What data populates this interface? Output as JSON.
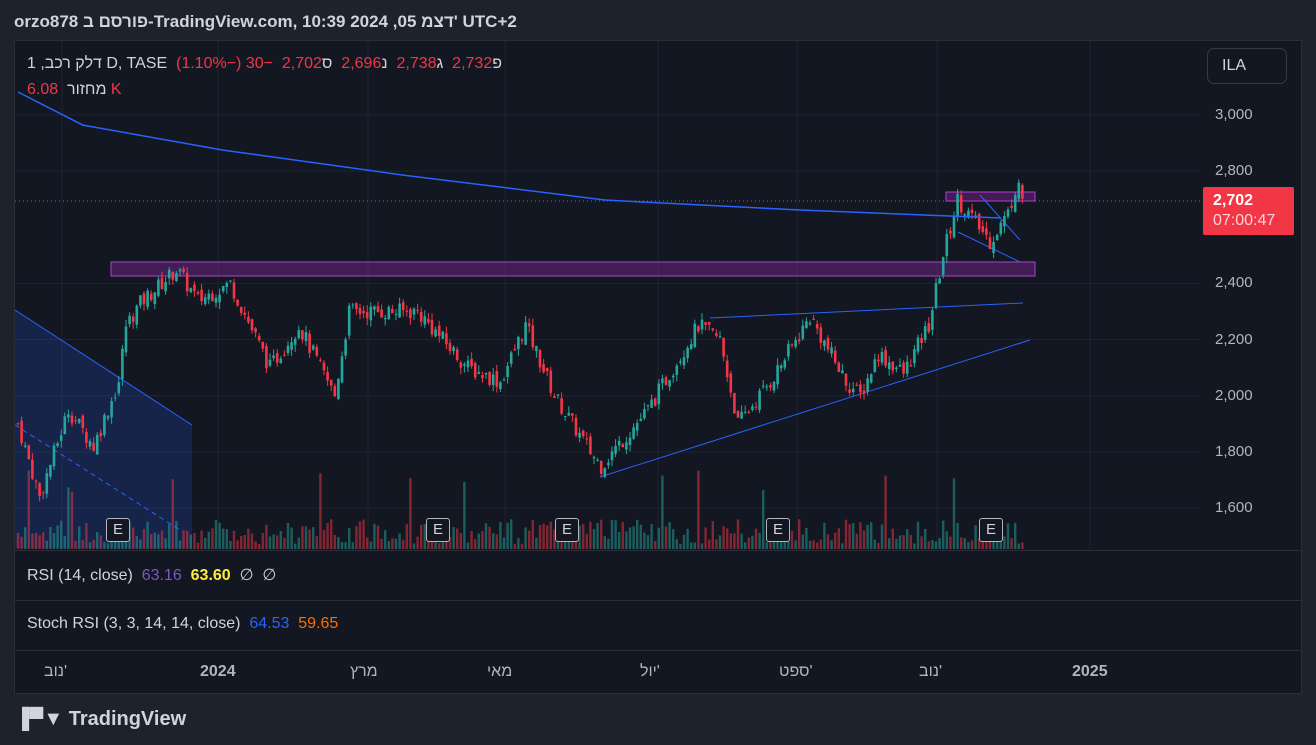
{
  "header": {
    "title": "orzo878 פורסם ב-TradingView.com, 10:39 2024 ,05 דצמ' UTC+2"
  },
  "legend": {
    "symbol": "1 ,דלק רכב D, TASE",
    "open_label": "פ",
    "open": "2,732",
    "high_label": "ג",
    "high": "2,738",
    "low_label": "נ",
    "low": "2,696",
    "close_label": "ס",
    "close": "2,702",
    "change": "−30 (−1.10%)",
    "volume_label": "מחזור",
    "volume": "6.08 K"
  },
  "currency": "ILA",
  "price_tag": {
    "price": "2,702",
    "countdown": "07:00:47"
  },
  "rsi": {
    "label": "RSI (14, close)",
    "v1": "63.16",
    "v2": "63.60",
    "n1": "∅",
    "n2": "∅"
  },
  "stoch": {
    "label": "Stoch RSI (3, 3, 14, 14, close)",
    "k": "64.53",
    "d": "59.65"
  },
  "earnings_marker": "E",
  "logo": "TradingView",
  "colors": {
    "up": "#26a69a",
    "down": "#f23645",
    "ma": "#2962ff",
    "zone": "#9c27b0"
  },
  "chart_data": {
    "type": "candlestick",
    "yticks": [
      "3,000",
      "2,800",
      "2,400",
      "2,200",
      "2,000",
      "1,800",
      "1,600"
    ],
    "ytick_values": [
      3000,
      2800,
      2400,
      2200,
      2000,
      1800,
      1600
    ],
    "ylim": [
      1480,
      3120
    ],
    "xticks": [
      "נוב'",
      "2024",
      "מרץ",
      "מאי",
      "יול'",
      "ספט'",
      "נוב'",
      "2025"
    ],
    "price_path": [
      [
        0,
        1900
      ],
      [
        6,
        1640
      ],
      [
        14,
        1950
      ],
      [
        21,
        1820
      ],
      [
        28,
        2050
      ],
      [
        30,
        2250
      ],
      [
        34,
        2330
      ],
      [
        44,
        2450
      ],
      [
        50,
        2340
      ],
      [
        59,
        2400
      ],
      [
        70,
        2100
      ],
      [
        78,
        2250
      ],
      [
        88,
        2000
      ],
      [
        92,
        2300
      ],
      [
        111,
        2300
      ],
      [
        125,
        2100
      ],
      [
        134,
        2050
      ],
      [
        141,
        2250
      ],
      [
        149,
        2000
      ],
      [
        159,
        1800
      ],
      [
        162,
        1750
      ],
      [
        175,
        1950
      ],
      [
        189,
        2250
      ],
      [
        195,
        2200
      ],
      [
        200,
        1900
      ],
      [
        209,
        2050
      ],
      [
        220,
        2280
      ],
      [
        230,
        2050
      ],
      [
        234,
        2000
      ],
      [
        239,
        2150
      ],
      [
        246,
        2080
      ],
      [
        253,
        2250
      ],
      [
        257,
        2500
      ],
      [
        261,
        2700
      ],
      [
        270,
        2550
      ],
      [
        275,
        2650
      ],
      [
        278,
        2780
      ],
      [
        279,
        2702
      ]
    ],
    "moving_average": [
      [
        0,
        3082
      ],
      [
        18,
        2964
      ],
      [
        57,
        2875
      ],
      [
        107,
        2786
      ],
      [
        163,
        2697
      ],
      [
        218,
        2661
      ],
      [
        273,
        2633
      ]
    ]
  }
}
